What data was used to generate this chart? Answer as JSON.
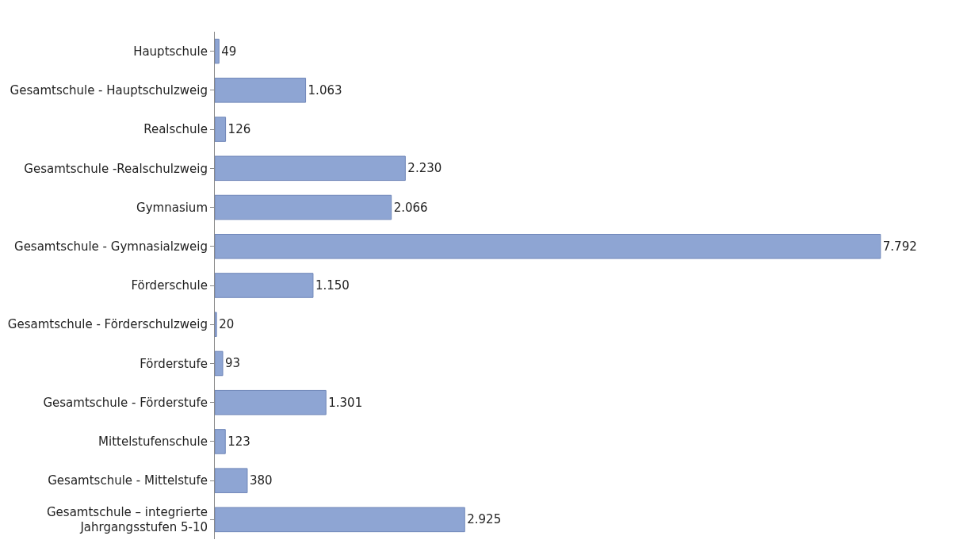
{
  "chart_data": {
    "type": "bar",
    "orientation": "horizontal",
    "categories": [
      "Hauptschule",
      "Gesamtschule - Hauptschulzweig",
      "Realschule",
      "Gesamtschule -Realschulzweig",
      "Gymnasium",
      "Gesamtschule - Gymnasialzweig",
      "Förderschule",
      "Gesamtschule - Förderschulzweig",
      "Förderstufe",
      "Gesamtschule - Förderstufe",
      "Mittelstufenschule",
      "Gesamtschule - Mittelstufe",
      "Gesamtschule – integrierte\nJahrgangsstufen 5-10"
    ],
    "values": [
      49,
      1063,
      126,
      2230,
      2066,
      7792,
      1150,
      20,
      93,
      1301,
      123,
      380,
      2925
    ],
    "value_labels": [
      "49",
      "1.063",
      "126",
      "2.230",
      "2.066",
      "7.792",
      "1.150",
      "20",
      "93",
      "1.301",
      "123",
      "380",
      "2.925"
    ],
    "color": "#8ea5d3",
    "tick_labels": "y"
  }
}
